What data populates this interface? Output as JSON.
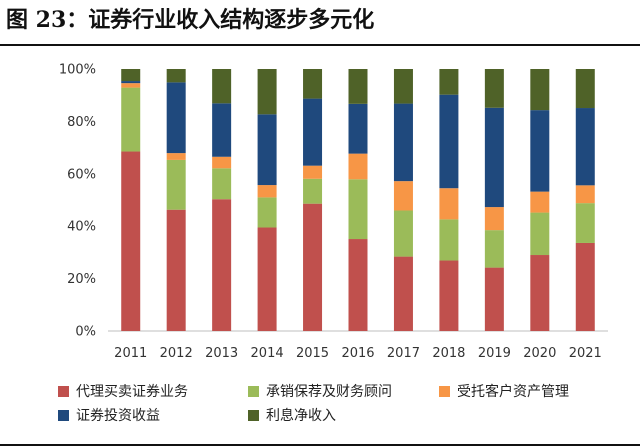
{
  "figure": {
    "title": "图 23：证券行业收入结构逐步多元化"
  },
  "chart_data": {
    "type": "bar",
    "stacked": true,
    "categories": [
      "2011",
      "2012",
      "2013",
      "2014",
      "2015",
      "2016",
      "2017",
      "2018",
      "2019",
      "2020",
      "2021"
    ],
    "series": [
      {
        "name": "代理买卖证券业务",
        "color": "#c0504d",
        "values": [
          68.5,
          46.3,
          50.3,
          39.5,
          48.6,
          35.1,
          28.4,
          26.9,
          24.2,
          29.0,
          33.6
        ]
      },
      {
        "name": "承销保荐及财务顾问",
        "color": "#9bbb59",
        "values": [
          24.4,
          19.0,
          11.8,
          11.5,
          9.5,
          22.8,
          17.6,
          15.7,
          14.3,
          16.2,
          15.2
        ]
      },
      {
        "name": "受托客户资产管理",
        "color": "#f79646",
        "values": [
          1.7,
          2.6,
          4.4,
          4.7,
          5.0,
          9.8,
          11.2,
          11.9,
          8.8,
          8.0,
          6.8
        ]
      },
      {
        "name": "证券投资收益",
        "color": "#1f497d",
        "values": [
          0.8,
          27.0,
          20.4,
          27.0,
          25.6,
          19.0,
          29.6,
          35.7,
          37.9,
          31.1,
          29.5
        ]
      },
      {
        "name": "利息净收入",
        "color": "#4f6228",
        "values": [
          4.6,
          5.1,
          13.1,
          17.3,
          11.3,
          13.3,
          13.2,
          9.8,
          14.8,
          15.7,
          14.9
        ]
      }
    ],
    "ylim": [
      0,
      100
    ],
    "yticks": [
      "0%",
      "20%",
      "40%",
      "60%",
      "80%",
      "100%"
    ],
    "ytick_values": [
      0,
      20,
      40,
      60,
      80,
      100
    ],
    "grid": false,
    "legend_position": "bottom"
  }
}
